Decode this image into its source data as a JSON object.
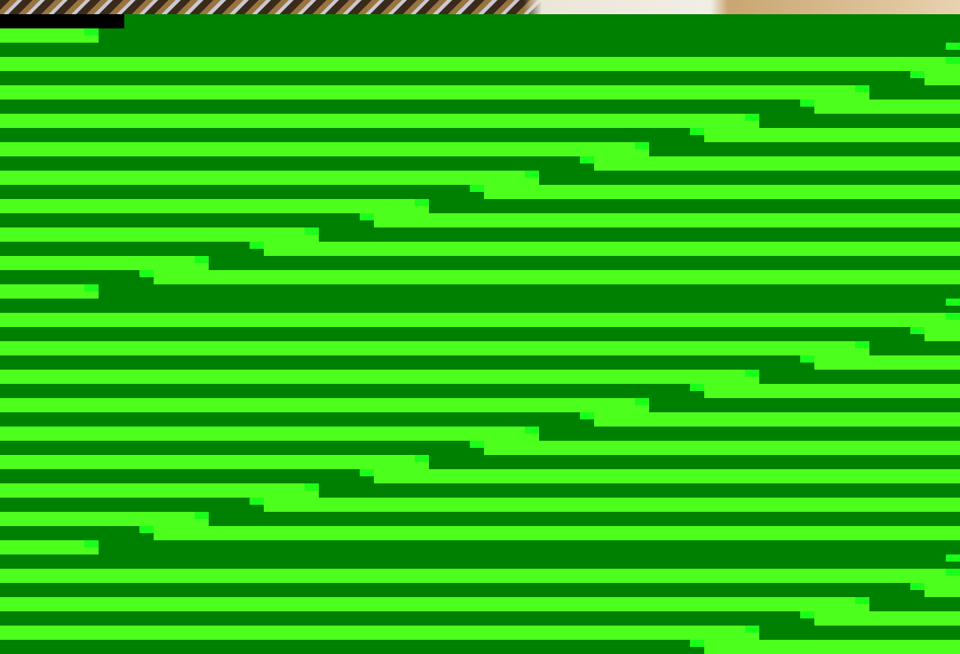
{
  "colors": {
    "dark_green": "#008000",
    "bright_green": "#4cff1c",
    "accent_green": "#1aff1a"
  }
}
